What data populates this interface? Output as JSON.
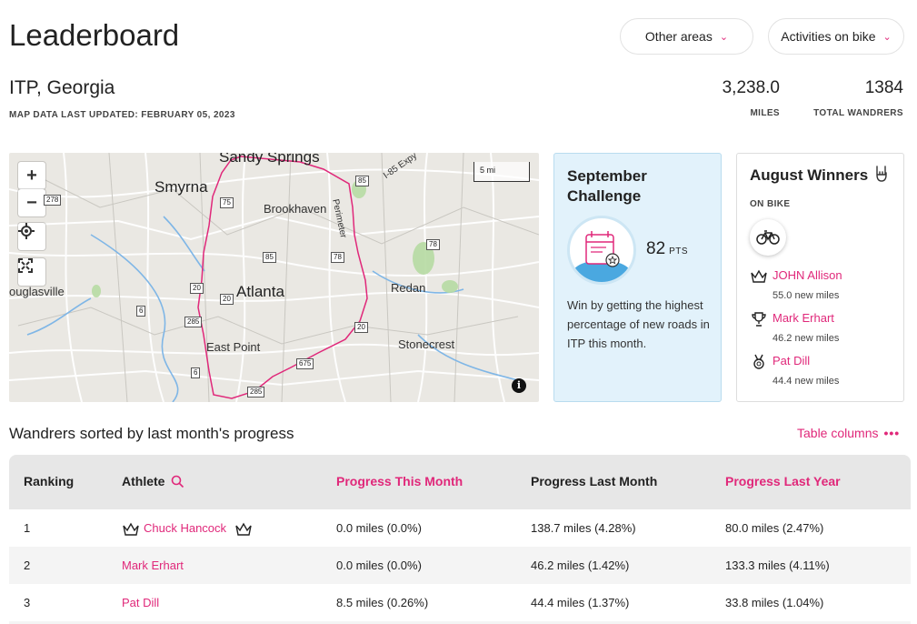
{
  "header": {
    "title": "Leaderboard",
    "area_dropdown": "Other areas",
    "activity_dropdown": "Activities on bike"
  },
  "area": {
    "name": "ITP, Georgia",
    "updated": "MAP DATA LAST UPDATED: FEBRUARY 05, 2023"
  },
  "stats": {
    "miles_value": "3,238.0",
    "miles_label": "MILES",
    "wanderers_value": "1384",
    "wanderers_label": "TOTAL WANDRERS"
  },
  "map": {
    "zoom_in": "+",
    "zoom_out": "−",
    "scale": "5 mi",
    "info": "i",
    "places": {
      "sandy_springs": "Sandy Springs",
      "smyrna": "Smyrna",
      "brookhaven": "Brookhaven",
      "atlanta": "Atlanta",
      "redan": "Redan",
      "douglasville": "ouglasville",
      "east_point": "East Point",
      "stonecrest": "Stonecrest",
      "perimeter": "Perimeter",
      "i85": "I-85 Expy"
    },
    "shields": [
      "278",
      "75",
      "85",
      "85",
      "78",
      "78",
      "20",
      "20",
      "20",
      "6",
      "285",
      "6",
      "675",
      "285"
    ]
  },
  "challenge": {
    "title": "September Challenge",
    "points": "82",
    "points_unit": "PTS",
    "description": "Win by getting the highest percentage of new roads in ITP this month."
  },
  "winners": {
    "title": "August Winners",
    "subtitle": "ON BIKE",
    "list": [
      {
        "name": "JOHN Allison",
        "miles": "55.0 new miles",
        "icon": "crown-icon"
      },
      {
        "name": "Mark Erhart",
        "miles": "46.2 new miles",
        "icon": "trophy-icon"
      },
      {
        "name": "Pat Dill",
        "miles": "44.4 new miles",
        "icon": "medal-icon"
      }
    ]
  },
  "table": {
    "caption": "Wandrers sorted by last month's progress",
    "columns_button": "Table columns",
    "headers": {
      "ranking": "Ranking",
      "athlete": "Athlete",
      "this_month": "Progress This Month",
      "last_month": "Progress Last Month",
      "last_year": "Progress Last Year"
    },
    "rows": [
      {
        "rank": "1",
        "athlete": "Chuck Hancock",
        "this_month": "0.0 miles (0.0%)",
        "last_month": "138.7 miles (4.28%)",
        "last_year": "80.0 miles (2.47%)"
      },
      {
        "rank": "2",
        "athlete": "Mark Erhart",
        "this_month": "0.0 miles (0.0%)",
        "last_month": "46.2 miles (1.42%)",
        "last_year": "133.3 miles (4.11%)"
      },
      {
        "rank": "3",
        "athlete": "Pat Dill",
        "this_month": "8.5 miles (0.26%)",
        "last_month": "44.4 miles (1.37%)",
        "last_year": "33.8 miles (1.04%)"
      }
    ]
  },
  "colors": {
    "accent": "#e0287a",
    "challenge_bg": "#e2f2fb",
    "map_bg": "#eae8e3",
    "table_header_bg": "#e7e7e7"
  }
}
